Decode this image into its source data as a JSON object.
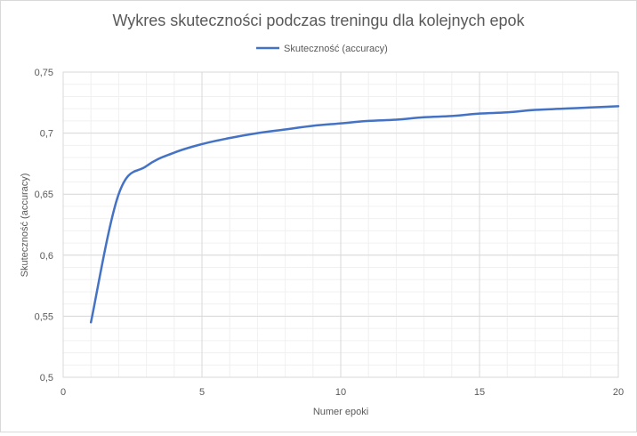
{
  "chart_data": {
    "type": "line",
    "title": "Wykres skuteczności podczas treningu dla kolejnych epok",
    "xlabel": "Numer epoki",
    "ylabel": "Skuteczność (accuracy)",
    "xlim": [
      0,
      20
    ],
    "ylim": [
      0.5,
      0.75
    ],
    "x_ticks": [
      0,
      5,
      10,
      15,
      20
    ],
    "x_tick_labels": [
      "0",
      "5",
      "10",
      "15",
      "20"
    ],
    "y_ticks": [
      0.5,
      0.55,
      0.6,
      0.65,
      0.7,
      0.75
    ],
    "y_tick_labels": [
      "0,5",
      "0,55",
      "0,6",
      "0,65",
      "0,7",
      "0,75"
    ],
    "grid": true,
    "legend": "top",
    "colors": {
      "series": "#4472c4",
      "major_grid": "#d9d9d9",
      "minor_grid": "#f0f0f0",
      "text": "#595959"
    },
    "series": [
      {
        "name": "Skuteczność (accuracy)",
        "x": [
          1,
          2,
          3,
          4,
          5,
          6,
          7,
          8,
          9,
          10,
          11,
          12,
          13,
          14,
          15,
          16,
          17,
          18,
          19,
          20
        ],
        "values": [
          0.545,
          0.65,
          0.673,
          0.684,
          0.691,
          0.696,
          0.7,
          0.703,
          0.706,
          0.708,
          0.71,
          0.711,
          0.713,
          0.714,
          0.716,
          0.717,
          0.719,
          0.72,
          0.721,
          0.722
        ]
      }
    ]
  }
}
